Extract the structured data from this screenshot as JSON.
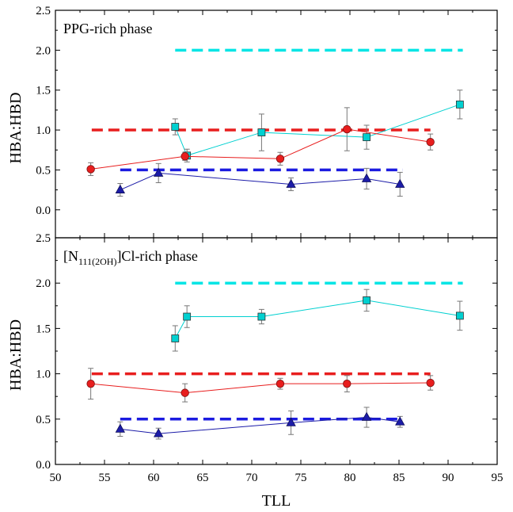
{
  "chart_data": [
    {
      "type": "line",
      "title": "PPG-rich phase",
      "xlabel": "TLL",
      "ylabel": "HBA:HBD",
      "xlim": [
        50,
        95
      ],
      "ylim": [
        -0.35,
        2.5
      ],
      "grid": false,
      "reference_lines": [
        {
          "y": 2.0,
          "x": [
            62.2,
            91.5
          ],
          "color": "#00e5e5"
        },
        {
          "y": 1.0,
          "x": [
            53.7,
            88.2
          ],
          "color": "#e81e1e"
        },
        {
          "y": 0.5,
          "x": [
            56.6,
            85.4
          ],
          "color": "#1c1ce0"
        }
      ],
      "series": [
        {
          "color": "#00d0d0",
          "marker": "square",
          "x": [
            62.2,
            63.4,
            71.0,
            81.7,
            91.2
          ],
          "y": [
            1.04,
            0.68,
            0.97,
            0.91,
            1.32
          ],
          "err": [
            0.1,
            0.08,
            0.23,
            0.15,
            0.18
          ]
        },
        {
          "color": "#e81e1e",
          "marker": "circle",
          "x": [
            53.6,
            63.2,
            72.9,
            79.7,
            88.2
          ],
          "y": [
            0.51,
            0.67,
            0.64,
            1.01,
            0.85
          ],
          "err": [
            0.08,
            0.05,
            0.08,
            0.27,
            0.1
          ]
        },
        {
          "color": "#1c1ca8",
          "marker": "triangle",
          "x": [
            56.6,
            60.5,
            74.0,
            81.7,
            85.1
          ],
          "y": [
            0.25,
            0.46,
            0.32,
            0.39,
            0.32
          ],
          "err": [
            0.08,
            0.12,
            0.08,
            0.13,
            0.15
          ]
        }
      ]
    },
    {
      "type": "line",
      "title": "[N111(2OH)]Cl-rich phase",
      "title_parts": {
        "pre": "[N",
        "sub": "111(2OH)",
        "post": "]Cl-rich phase"
      },
      "xlabel": "TLL",
      "ylabel": "HBA:HBD",
      "xlim": [
        50,
        95
      ],
      "ylim": [
        0.0,
        2.5
      ],
      "xticks": [
        50,
        55,
        60,
        65,
        70,
        75,
        80,
        85,
        90,
        95
      ],
      "grid": false,
      "reference_lines": [
        {
          "y": 2.0,
          "x": [
            62.2,
            91.5
          ],
          "color": "#00e5e5"
        },
        {
          "y": 1.0,
          "x": [
            53.7,
            88.2
          ],
          "color": "#e81e1e"
        },
        {
          "y": 0.5,
          "x": [
            56.6,
            85.4
          ],
          "color": "#1c1ce0"
        }
      ],
      "series": [
        {
          "color": "#00d0d0",
          "marker": "square",
          "x": [
            62.2,
            63.4,
            71.0,
            81.7,
            91.2
          ],
          "y": [
            1.39,
            1.63,
            1.63,
            1.81,
            1.64
          ],
          "err": [
            0.14,
            0.12,
            0.08,
            0.12,
            0.16
          ]
        },
        {
          "color": "#e81e1e",
          "marker": "circle",
          "x": [
            53.6,
            63.2,
            72.9,
            79.7,
            88.2
          ],
          "y": [
            0.89,
            0.79,
            0.89,
            0.89,
            0.9
          ],
          "err": [
            0.17,
            0.1,
            0.06,
            0.09,
            0.08
          ]
        },
        {
          "color": "#1c1ca8",
          "marker": "triangle",
          "x": [
            56.6,
            60.5,
            74.0,
            81.7,
            85.1
          ],
          "y": [
            0.39,
            0.34,
            0.46,
            0.52,
            0.47
          ],
          "err": [
            0.08,
            0.06,
            0.13,
            0.11,
            0.06
          ]
        }
      ]
    }
  ]
}
